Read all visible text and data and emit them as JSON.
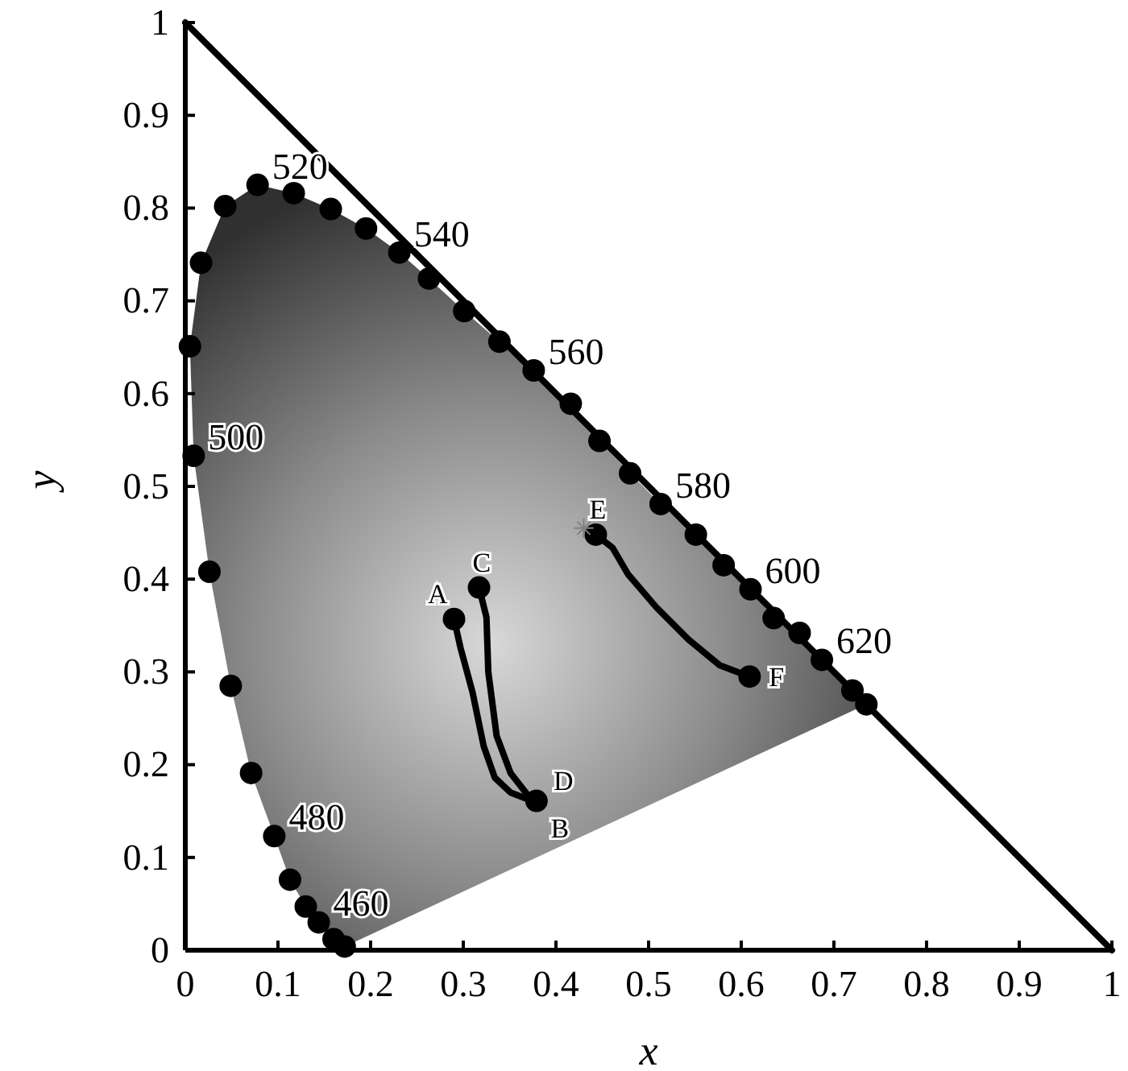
{
  "chart_data": {
    "type": "scatter",
    "xlabel": "x",
    "ylabel": "y",
    "xlim": [
      0,
      1
    ],
    "ylim": [
      0,
      1
    ],
    "xticks": [
      0,
      0.1,
      0.2,
      0.3,
      0.4,
      0.5,
      0.6,
      0.7,
      0.8,
      0.9,
      1
    ],
    "yticks": [
      0,
      0.1,
      0.2,
      0.3,
      0.4,
      0.5,
      0.6,
      0.7,
      0.8,
      0.9,
      1
    ],
    "grid": false,
    "marker": "circle",
    "series": [
      {
        "type": "line",
        "color": "#000000",
        "marker": "none",
        "x": [
          0,
          1
        ],
        "values": [
          1,
          0
        ]
      },
      {
        "color": "#000000",
        "x": [
          0.172,
          0.16,
          0.144,
          0.13,
          0.113,
          0.096,
          0.071,
          0.049,
          0.026,
          0.009,
          0.005,
          0.017,
          0.043,
          0.078,
          0.117,
          0.157,
          0.195,
          0.231,
          0.263,
          0.301,
          0.339,
          0.376,
          0.416,
          0.447,
          0.48,
          0.513,
          0.551,
          0.581,
          0.61,
          0.635,
          0.663,
          0.687,
          0.72,
          0.735
        ],
        "values": [
          0.004,
          0.012,
          0.03,
          0.047,
          0.076,
          0.123,
          0.191,
          0.285,
          0.408,
          0.533,
          0.651,
          0.741,
          0.802,
          0.825,
          0.816,
          0.799,
          0.778,
          0.752,
          0.724,
          0.689,
          0.656,
          0.625,
          0.589,
          0.549,
          0.514,
          0.481,
          0.448,
          0.415,
          0.389,
          0.358,
          0.342,
          0.313,
          0.28,
          0.265
        ]
      },
      {
        "type": "line",
        "color": "#000000",
        "marker": "none",
        "x": [
          0.29,
          0.297,
          0.31,
          0.322,
          0.334,
          0.351,
          0.377
        ],
        "values": [
          0.357,
          0.326,
          0.278,
          0.22,
          0.186,
          0.17,
          0.16
        ]
      },
      {
        "type": "line",
        "color": "#000000",
        "marker": "none",
        "x": [
          0.317,
          0.325,
          0.327,
          0.336,
          0.351,
          0.369,
          0.38
        ],
        "values": [
          0.391,
          0.359,
          0.3,
          0.231,
          0.191,
          0.168,
          0.162
        ]
      },
      {
        "type": "line",
        "color": "#000000",
        "marker": "none",
        "x": [
          0.443,
          0.461,
          0.478,
          0.508,
          0.543,
          0.577,
          0.609
        ],
        "values": [
          0.448,
          0.434,
          0.405,
          0.37,
          0.335,
          0.307,
          0.295
        ]
      },
      {
        "color": "#000000",
        "x": [
          0.29,
          0.317,
          0.379,
          0.443,
          0.609
        ],
        "values": [
          0.357,
          0.391,
          0.161,
          0.448,
          0.295
        ]
      },
      {
        "type": "scatter",
        "color": "#808080",
        "marker": "cross",
        "x": [
          0.43
        ],
        "values": [
          0.455
        ]
      }
    ],
    "annotations": [
      {
        "text": "460",
        "x": 0.144,
        "y": 0.03
      },
      {
        "text": "480",
        "x": 0.096,
        "y": 0.123
      },
      {
        "text": "500",
        "x": 0.009,
        "y": 0.533
      },
      {
        "text": "520",
        "x": 0.078,
        "y": 0.825
      },
      {
        "text": "540",
        "x": 0.231,
        "y": 0.752
      },
      {
        "text": "560",
        "x": 0.376,
        "y": 0.625
      },
      {
        "text": "580",
        "x": 0.513,
        "y": 0.481
      },
      {
        "text": "600",
        "x": 0.61,
        "y": 0.389
      },
      {
        "text": "620",
        "x": 0.687,
        "y": 0.313
      },
      {
        "text": "A",
        "x": 0.29,
        "y": 0.357
      },
      {
        "text": "B",
        "x": 0.377,
        "y": 0.16
      },
      {
        "text": "C",
        "x": 0.317,
        "y": 0.391
      },
      {
        "text": "D",
        "x": 0.38,
        "y": 0.162
      },
      {
        "text": "E",
        "x": 0.443,
        "y": 0.448
      },
      {
        "text": "F",
        "x": 0.609,
        "y": 0.295
      }
    ]
  }
}
